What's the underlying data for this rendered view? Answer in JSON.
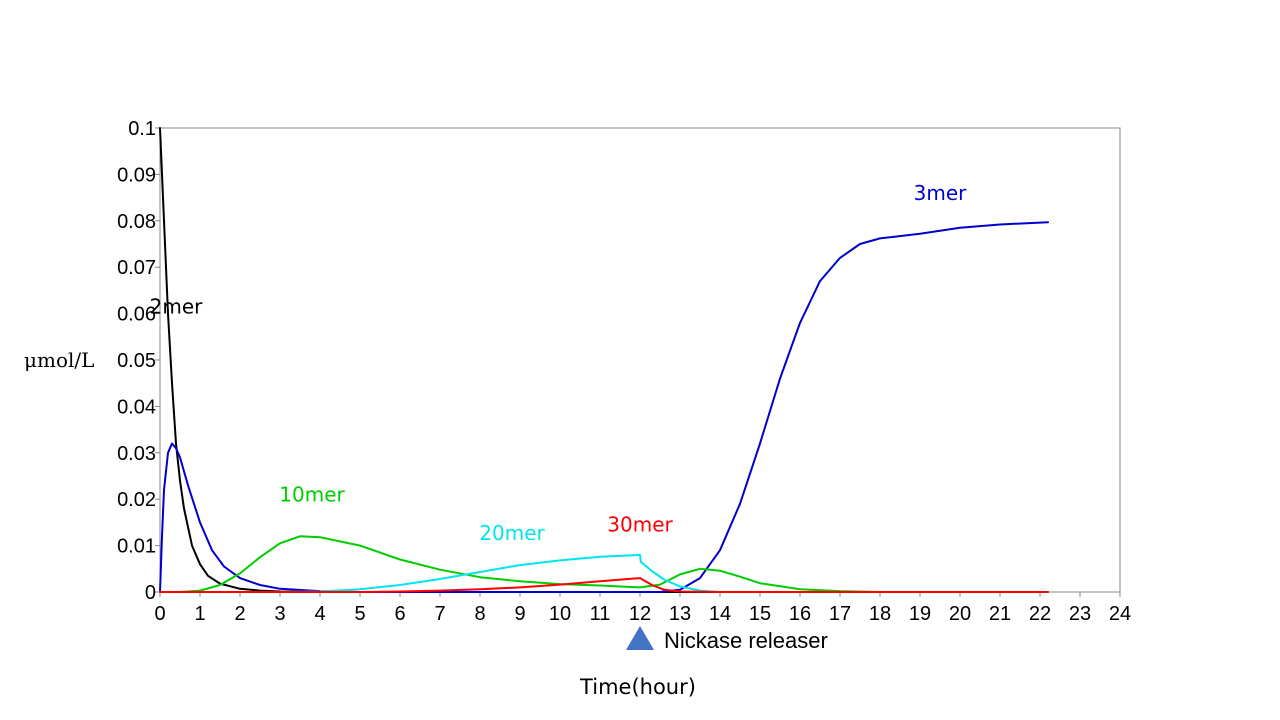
{
  "chart_data": {
    "type": "line",
    "xlabel": "Time(hour)",
    "ylabel": "μmol/L",
    "xlim": [
      0,
      24
    ],
    "ylim": [
      0,
      0.1
    ],
    "x_ticks": [
      "0",
      "1",
      "2",
      "3",
      "4",
      "5",
      "6",
      "7",
      "8",
      "9",
      "10",
      "11",
      "12",
      "13",
      "14",
      "15",
      "16",
      "17",
      "18",
      "19",
      "20",
      "21",
      "22",
      "23",
      "24"
    ],
    "y_ticks": [
      "0",
      "0.01",
      "0.02",
      "0.03",
      "0.04",
      "0.05",
      "0.06",
      "0.07",
      "0.08",
      "0.09",
      "0.1"
    ],
    "grid": false,
    "annotation": {
      "text": "Nickase releaser",
      "x": 12,
      "marker": "triangle-up",
      "color": "#4472C4"
    },
    "series": [
      {
        "name": "2mer",
        "color": "#000000",
        "label_at": [
          0.4,
          0.06
        ],
        "points": [
          [
            0,
            0.1
          ],
          [
            0.1,
            0.08
          ],
          [
            0.2,
            0.06
          ],
          [
            0.3,
            0.045
          ],
          [
            0.4,
            0.032
          ],
          [
            0.5,
            0.024
          ],
          [
            0.6,
            0.018
          ],
          [
            0.8,
            0.01
          ],
          [
            1.0,
            0.006
          ],
          [
            1.2,
            0.0035
          ],
          [
            1.5,
            0.0018
          ],
          [
            2.0,
            0.0007
          ],
          [
            2.5,
            0.0003
          ],
          [
            3.0,
            0.0001
          ],
          [
            4.0,
            0
          ],
          [
            22.2,
            0
          ]
        ]
      },
      {
        "name": "3mer",
        "color": "#0000CC",
        "label_at": [
          19.5,
          0.0845
        ],
        "points": [
          [
            0,
            0
          ],
          [
            0.05,
            0.012
          ],
          [
            0.1,
            0.022
          ],
          [
            0.2,
            0.03
          ],
          [
            0.3,
            0.032
          ],
          [
            0.4,
            0.031
          ],
          [
            0.5,
            0.029
          ],
          [
            0.7,
            0.023
          ],
          [
            1.0,
            0.015
          ],
          [
            1.3,
            0.009
          ],
          [
            1.6,
            0.0055
          ],
          [
            2.0,
            0.003
          ],
          [
            2.5,
            0.0015
          ],
          [
            3.0,
            0.0007
          ],
          [
            4.0,
            0.0002
          ],
          [
            5.0,
            0
          ],
          [
            12,
            0
          ],
          [
            12.5,
            0
          ],
          [
            13.0,
            0.0005
          ],
          [
            13.5,
            0.003
          ],
          [
            14.0,
            0.009
          ],
          [
            14.5,
            0.019
          ],
          [
            15.0,
            0.032
          ],
          [
            15.5,
            0.046
          ],
          [
            16.0,
            0.058
          ],
          [
            16.5,
            0.067
          ],
          [
            17.0,
            0.072
          ],
          [
            17.5,
            0.075
          ],
          [
            18.0,
            0.0762
          ],
          [
            19.0,
            0.0772
          ],
          [
            20.0,
            0.0785
          ],
          [
            21.0,
            0.0792
          ],
          [
            22.2,
            0.0797
          ]
        ]
      },
      {
        "name": "10mer",
        "color": "#00CC00",
        "label_at": [
          3.8,
          0.0195
        ],
        "points": [
          [
            0,
            0
          ],
          [
            0.5,
            0
          ],
          [
            1.0,
            0.0003
          ],
          [
            1.5,
            0.0015
          ],
          [
            2.0,
            0.004
          ],
          [
            2.5,
            0.0075
          ],
          [
            3.0,
            0.0105
          ],
          [
            3.5,
            0.012
          ],
          [
            4.0,
            0.0118
          ],
          [
            5.0,
            0.01
          ],
          [
            6.0,
            0.007
          ],
          [
            7.0,
            0.0048
          ],
          [
            8.0,
            0.0032
          ],
          [
            9.0,
            0.0023
          ],
          [
            10.0,
            0.0017
          ],
          [
            11.0,
            0.0014
          ],
          [
            12.0,
            0.001
          ],
          [
            12.5,
            0.0016
          ],
          [
            13.0,
            0.0038
          ],
          [
            13.5,
            0.005
          ],
          [
            14.0,
            0.0046
          ],
          [
            14.5,
            0.0033
          ],
          [
            15.0,
            0.0019
          ],
          [
            16.0,
            0.0006
          ],
          [
            17.0,
            0.0002
          ],
          [
            18.0,
            0
          ],
          [
            22.2,
            0
          ]
        ]
      },
      {
        "name": "20mer",
        "color": "#00E5EE",
        "label_at": [
          8.8,
          0.0112
        ],
        "points": [
          [
            0,
            0
          ],
          [
            3.0,
            0
          ],
          [
            4.0,
            0.0001
          ],
          [
            5.0,
            0.0006
          ],
          [
            6.0,
            0.0015
          ],
          [
            7.0,
            0.0028
          ],
          [
            8.0,
            0.0043
          ],
          [
            9.0,
            0.0058
          ],
          [
            10.0,
            0.0068
          ],
          [
            11.0,
            0.0076
          ],
          [
            12.0,
            0.008
          ],
          [
            12.02,
            0.0065
          ],
          [
            12.3,
            0.0045
          ],
          [
            12.6,
            0.0027
          ],
          [
            13.0,
            0.0012
          ],
          [
            13.5,
            0.0003
          ],
          [
            14.0,
            0
          ],
          [
            22.2,
            0
          ]
        ]
      },
      {
        "name": "30mer",
        "color": "#FF0000",
        "label_at": [
          12,
          0.013
        ],
        "points": [
          [
            0,
            0
          ],
          [
            5.0,
            0
          ],
          [
            6.0,
            0.0001
          ],
          [
            7.0,
            0.0003
          ],
          [
            8.0,
            0.0006
          ],
          [
            9.0,
            0.001
          ],
          [
            10.0,
            0.0016
          ],
          [
            11.0,
            0.0023
          ],
          [
            12.0,
            0.003
          ],
          [
            12.3,
            0.0015
          ],
          [
            12.6,
            0.0005
          ],
          [
            13.0,
            0.0001
          ],
          [
            14.0,
            0
          ],
          [
            22.2,
            0
          ]
        ]
      }
    ]
  }
}
